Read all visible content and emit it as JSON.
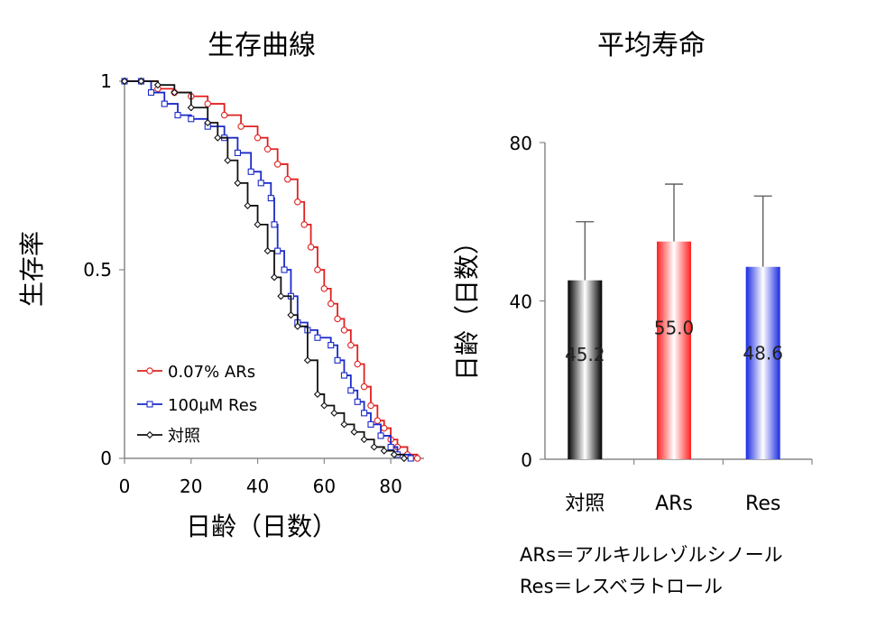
{
  "chart_data": [
    {
      "type": "line",
      "title": "生存曲線",
      "xlabel": "日齢（日数）",
      "ylabel": "生存率",
      "xlim": [
        0,
        90
      ],
      "ylim": [
        0,
        1
      ],
      "xticks": [
        "0",
        "20",
        "40",
        "60",
        "80"
      ],
      "yticks": [
        "0",
        "0.5",
        "1"
      ],
      "legend_position": "bottom-left",
      "series": [
        {
          "name": "0.07% ARs",
          "color": "#e02020",
          "marker": "circle",
          "x": [
            0,
            5,
            10,
            15,
            20,
            25,
            30,
            35,
            40,
            43,
            46,
            49,
            52,
            54,
            56,
            58,
            60,
            62,
            64,
            66,
            68,
            70,
            72,
            74,
            76,
            78,
            80,
            82,
            85,
            88
          ],
          "y": [
            1,
            1,
            0.98,
            0.97,
            0.96,
            0.94,
            0.91,
            0.88,
            0.85,
            0.82,
            0.78,
            0.74,
            0.68,
            0.62,
            0.56,
            0.5,
            0.45,
            0.41,
            0.37,
            0.34,
            0.3,
            0.25,
            0.19,
            0.14,
            0.1,
            0.08,
            0.05,
            0.03,
            0.01,
            0
          ]
        },
        {
          "name": "100μM Res",
          "color": "#1a2ac8",
          "marker": "square",
          "x": [
            0,
            5,
            8,
            12,
            16,
            20,
            25,
            30,
            34,
            38,
            41,
            44,
            45,
            46,
            48,
            50,
            52,
            55,
            58,
            62,
            64,
            66,
            68,
            70,
            72,
            74,
            77,
            80,
            82,
            86
          ],
          "y": [
            1,
            1,
            0.97,
            0.94,
            0.91,
            0.9,
            0.88,
            0.85,
            0.81,
            0.76,
            0.73,
            0.69,
            0.62,
            0.55,
            0.5,
            0.43,
            0.36,
            0.34,
            0.32,
            0.3,
            0.26,
            0.22,
            0.18,
            0.15,
            0.12,
            0.09,
            0.06,
            0.03,
            0.01,
            0
          ]
        },
        {
          "name": "対照",
          "color": "#111111",
          "marker": "diamond",
          "x": [
            0,
            5,
            10,
            15,
            20,
            25,
            28,
            31,
            34,
            37,
            40,
            43,
            45,
            47,
            50,
            52,
            55,
            58,
            60,
            63,
            66,
            69,
            72,
            75,
            78,
            81,
            84
          ],
          "y": [
            1,
            1,
            0.99,
            0.97,
            0.93,
            0.89,
            0.85,
            0.79,
            0.73,
            0.67,
            0.62,
            0.55,
            0.48,
            0.43,
            0.38,
            0.35,
            0.26,
            0.17,
            0.14,
            0.12,
            0.09,
            0.07,
            0.05,
            0.03,
            0.02,
            0.01,
            0
          ]
        }
      ]
    },
    {
      "type": "bar",
      "title": "平均寿命",
      "ylabel": "日齢（日数）",
      "ylim": [
        0,
        80
      ],
      "yticks": [
        "0",
        "40",
        "80"
      ],
      "categories": [
        "対照",
        "ARs",
        "Res"
      ],
      "values": [
        45.2,
        55.0,
        48.6
      ],
      "value_labels": [
        "45.2",
        "55.0",
        "48.6"
      ],
      "error_upper": [
        60,
        69.5,
        66.5
      ],
      "colors": [
        "#000000",
        "#ff2020",
        "#1a2ae0"
      ]
    }
  ],
  "notes": [
    "ARs＝アルキルレゾルシノール",
    "Res＝レスベラトロール"
  ]
}
